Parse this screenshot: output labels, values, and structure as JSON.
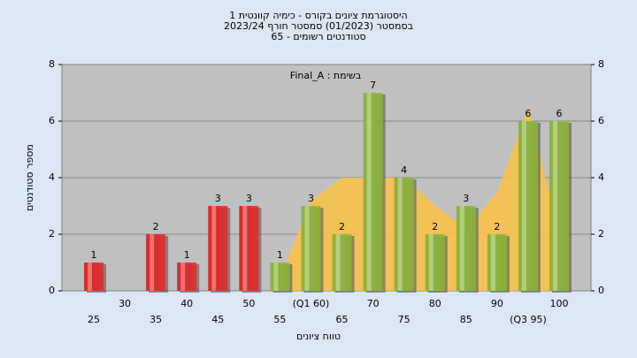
{
  "chart_data": {
    "type": "bar",
    "title": [
      "היסטוגרמת ציונים בקורס - כימיה קוונטית 1",
      "בסמסטר  (01/2023)  סמסטר חורף 2023/24",
      "סטודנטים רשומים - 65"
    ],
    "annotation": "Final_A : בשימת",
    "x_label": "טווח ציונים",
    "y_label": "מספר סטודנטים",
    "categories": [
      "25",
      "30",
      "35",
      "40",
      "45",
      "50",
      "55",
      "(Q1 60)",
      "65",
      "70",
      "75",
      "80",
      "85",
      "90",
      "(Q3 95)",
      "100"
    ],
    "values": [
      1,
      0,
      2,
      1,
      3,
      3,
      1,
      3,
      2,
      7,
      4,
      2,
      3,
      2,
      6,
      6
    ],
    "colors": [
      "#e02828",
      "#e02828",
      "#e02828",
      "#e02828",
      "#e02828",
      "#e02828",
      "#8cb43c",
      "#8cb43c",
      "#8cb43c",
      "#8cb43c",
      "#8cb43c",
      "#8cb43c",
      "#8cb43c",
      "#8cb43c",
      "#8cb43c",
      "#8cb43c"
    ],
    "overlay": {
      "color": "#f7c24a",
      "values": [
        null,
        null,
        null,
        null,
        null,
        null,
        0.5,
        3.2,
        4,
        4,
        4,
        3,
        2.2,
        3.5,
        6.5,
        2
      ]
    },
    "ylim": [
      0,
      8
    ],
    "yticks": [
      0,
      2,
      4,
      6,
      8
    ],
    "y2lim": [
      0,
      8
    ],
    "y2ticks": [
      0,
      2,
      4,
      6,
      8
    ],
    "grid": true
  }
}
